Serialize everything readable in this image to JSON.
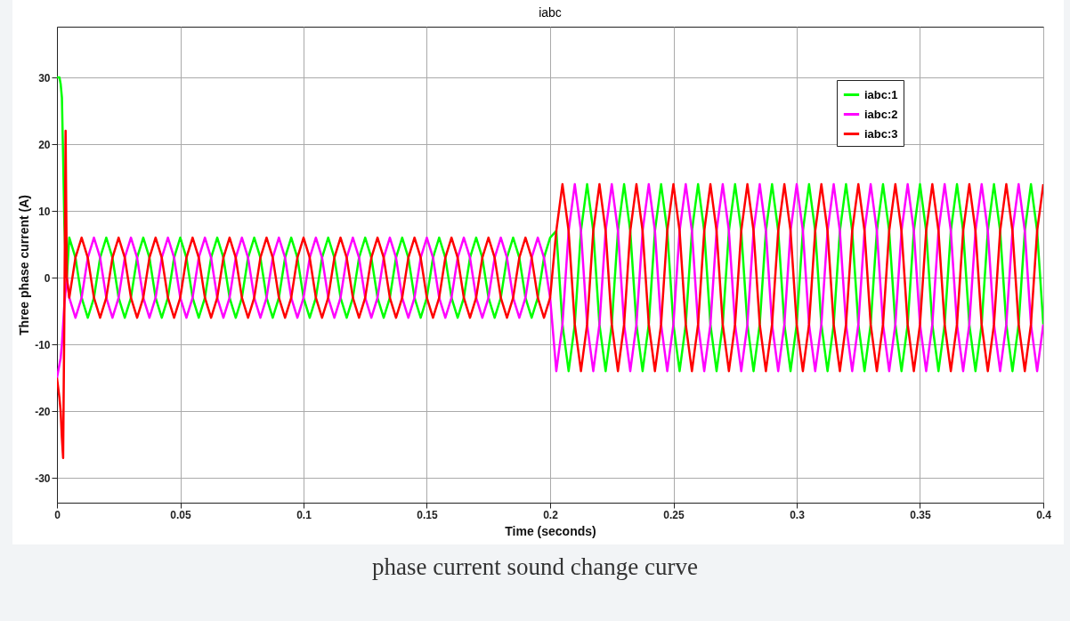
{
  "chart_data": {
    "type": "line",
    "title": "iabc",
    "xlabel": "Time (seconds)",
    "ylabel": "Three phase current (A)",
    "annotations": [
      "phase current sound change curve"
    ],
    "xlim": [
      0,
      0.4
    ],
    "xticks": [
      0,
      0.05,
      0.1,
      0.15,
      0.2,
      0.25,
      0.3,
      0.35,
      0.4
    ],
    "ylim": [
      -33.7,
      37.6
    ],
    "yticks": [
      -30,
      -20,
      -10,
      0,
      10,
      20,
      30
    ],
    "grid": true,
    "legend": "top right",
    "x": [
      0,
      0.001,
      0.0015,
      0.002,
      0.0025,
      0.003,
      0.0035,
      0.004,
      0.005,
      0.0075,
      0.01,
      0.0125,
      0.015,
      0.0175,
      0.02,
      0.0225,
      0.025,
      0.0275,
      0.03,
      0.0325,
      0.035,
      0.0375,
      0.04,
      0.0425,
      0.045,
      0.0475,
      0.05,
      0.0525,
      0.055,
      0.0575,
      0.06,
      0.0625,
      0.065,
      0.0675,
      0.07,
      0.0725,
      0.075,
      0.0775,
      0.08,
      0.0825,
      0.085,
      0.0875,
      0.09,
      0.0925,
      0.095,
      0.0975,
      0.1,
      0.1025,
      0.105,
      0.1075,
      0.11,
      0.1125,
      0.115,
      0.1175,
      0.12,
      0.1225,
      0.125,
      0.1275,
      0.13,
      0.1325,
      0.135,
      0.1375,
      0.14,
      0.1425,
      0.145,
      0.1475,
      0.15,
      0.1525,
      0.155,
      0.1575,
      0.16,
      0.1625,
      0.165,
      0.1675,
      0.17,
      0.1725,
      0.175,
      0.1775,
      0.18,
      0.1825,
      0.185,
      0.1875,
      0.19,
      0.1925,
      0.195,
      0.1975,
      0.2,
      0.2025,
      0.205,
      0.2075,
      0.21,
      0.2125,
      0.215,
      0.2175,
      0.22,
      0.2225,
      0.225,
      0.2275,
      0.23,
      0.2325,
      0.235,
      0.2375,
      0.24,
      0.2425,
      0.245,
      0.2475,
      0.25,
      0.2525,
      0.255,
      0.2575,
      0.26,
      0.2625,
      0.265,
      0.2675,
      0.27,
      0.2725,
      0.275,
      0.2775,
      0.28,
      0.2825,
      0.285,
      0.2875,
      0.29,
      0.2925,
      0.295,
      0.2975,
      0.3,
      0.3025,
      0.305,
      0.3075,
      0.31,
      0.3125,
      0.315,
      0.3175,
      0.32,
      0.3225,
      0.325,
      0.3275,
      0.33,
      0.3325,
      0.335,
      0.3375,
      0.34,
      0.3425,
      0.345,
      0.3475,
      0.35,
      0.3525,
      0.355,
      0.3575,
      0.36,
      0.3625,
      0.365,
      0.3675,
      0.37,
      0.3725,
      0.375,
      0.3775,
      0.38,
      0.3825,
      0.385,
      0.3875,
      0.39,
      0.3925,
      0.395,
      0.3975,
      0.4
    ],
    "series": [
      {
        "name": "iabc:1",
        "color": "#00ff00",
        "values": [
          30,
          30,
          29,
          27,
          18,
          8,
          3,
          0,
          6,
          3,
          -3,
          -6,
          -3,
          3,
          6,
          3,
          -3,
          -6,
          -3,
          3,
          6,
          3,
          -3,
          -6,
          -3,
          3,
          6,
          3,
          -3,
          -6,
          -3,
          3,
          6,
          3,
          -3,
          -6,
          -3,
          3,
          6,
          3,
          -3,
          -6,
          -3,
          3,
          6,
          3,
          -3,
          -6,
          -3,
          3,
          6,
          3,
          -3,
          -6,
          -3,
          3,
          6,
          3,
          -3,
          -6,
          -3,
          3,
          6,
          3,
          -3,
          -6,
          -3,
          3,
          6,
          3,
          -3,
          -6,
          -3,
          3,
          6,
          3,
          -3,
          -6,
          -3,
          3,
          6,
          3,
          -3,
          -6,
          -3,
          3,
          6,
          7,
          -7,
          -14,
          -7,
          7,
          14,
          7,
          -7,
          -14,
          -7,
          7,
          14,
          7,
          -7,
          -14,
          -7,
          7,
          14,
          7,
          -7,
          -14,
          -7,
          7,
          14,
          7,
          -7,
          -14,
          -7,
          7,
          14,
          7,
          -7,
          -14,
          -7,
          7,
          14,
          7,
          -7,
          -14,
          -7,
          7,
          14,
          7,
          -7,
          -14,
          -7,
          7,
          14,
          7,
          -7,
          -14,
          -7,
          7,
          14,
          7,
          -7,
          -14,
          -7,
          7,
          14,
          7,
          -7,
          -14,
          -7,
          7,
          14,
          7,
          -7,
          -14,
          -7,
          7,
          14,
          7,
          -7,
          -14,
          -7,
          7,
          14,
          7,
          -7
        ]
      },
      {
        "name": "iabc:2",
        "color": "#ff00ff",
        "values": [
          -15,
          -13,
          -12,
          -10,
          -7,
          -4,
          -2,
          0,
          -3,
          -6,
          -3,
          3,
          6,
          3,
          -3,
          -6,
          -3,
          3,
          6,
          3,
          -3,
          -6,
          -3,
          3,
          6,
          3,
          -3,
          -6,
          -3,
          3,
          6,
          3,
          -3,
          -6,
          -3,
          3,
          6,
          3,
          -3,
          -6,
          -3,
          3,
          6,
          3,
          -3,
          -6,
          -3,
          3,
          6,
          3,
          -3,
          -6,
          -3,
          3,
          6,
          3,
          -3,
          -6,
          -3,
          3,
          6,
          3,
          -3,
          -6,
          -3,
          3,
          6,
          3,
          -3,
          -6,
          -3,
          3,
          6,
          3,
          -3,
          -6,
          -3,
          3,
          6,
          3,
          -3,
          -6,
          -3,
          3,
          6,
          3,
          -3,
          -14,
          -7,
          7,
          14,
          7,
          -7,
          -14,
          -7,
          7,
          14,
          7,
          -7,
          -14,
          -7,
          7,
          14,
          7,
          -7,
          -14,
          -7,
          7,
          14,
          7,
          -7,
          -14,
          -7,
          7,
          14,
          7,
          -7,
          -14,
          -7,
          7,
          14,
          7,
          -7,
          -14,
          -7,
          7,
          14,
          7,
          -7,
          -14,
          -7,
          7,
          14,
          7,
          -7,
          -14,
          -7,
          7,
          14,
          7,
          -7,
          -14,
          -7,
          7,
          14,
          7,
          -7,
          -14,
          -7,
          7,
          14,
          7,
          -7,
          -14,
          -7,
          7,
          14,
          7,
          -7,
          -14,
          -7,
          7,
          14,
          7,
          -7,
          -14,
          -7
        ]
      },
      {
        "name": "iabc:3",
        "color": "#ff0000",
        "values": [
          -15,
          -18,
          -20,
          -24,
          -27,
          -5,
          22,
          0,
          -3,
          3,
          6,
          3,
          -3,
          -6,
          -3,
          3,
          6,
          3,
          -3,
          -6,
          -3,
          3,
          6,
          3,
          -3,
          -6,
          -3,
          3,
          6,
          3,
          -3,
          -6,
          -3,
          3,
          6,
          3,
          -3,
          -6,
          -3,
          3,
          6,
          3,
          -3,
          -6,
          -3,
          3,
          6,
          3,
          -3,
          -6,
          -3,
          3,
          6,
          3,
          -3,
          -6,
          -3,
          3,
          6,
          3,
          -3,
          -6,
          -3,
          3,
          6,
          3,
          -3,
          -6,
          -3,
          3,
          6,
          3,
          -3,
          -6,
          -3,
          3,
          6,
          3,
          -3,
          -6,
          -3,
          3,
          6,
          3,
          -3,
          -6,
          -3,
          7,
          14,
          7,
          -7,
          -14,
          -7,
          7,
          14,
          7,
          -7,
          -14,
          -7,
          7,
          14,
          7,
          -7,
          -14,
          -7,
          7,
          14,
          7,
          -7,
          -14,
          -7,
          7,
          14,
          7,
          -7,
          -14,
          -7,
          7,
          14,
          7,
          -7,
          -14,
          -7,
          7,
          14,
          7,
          -7,
          -14,
          -7,
          7,
          14,
          7,
          -7,
          -14,
          -7,
          7,
          14,
          7,
          -7,
          -14,
          -7,
          7,
          14,
          7,
          -7,
          -14,
          -7,
          7,
          14,
          7,
          -7,
          -14,
          -7,
          7,
          14,
          7,
          -7,
          -14,
          -7,
          7,
          14,
          7,
          -7,
          -14,
          -7,
          7,
          14
        ]
      }
    ]
  }
}
